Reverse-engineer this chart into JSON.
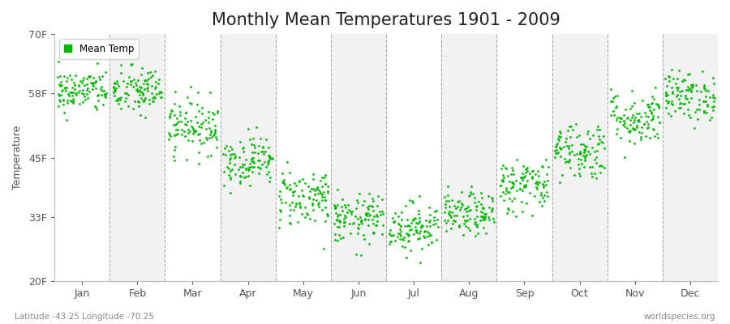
{
  "title": "Monthly Mean Temperatures 1901 - 2009",
  "ylabel": "Temperature",
  "xlabel_months": [
    "Jan",
    "Feb",
    "Mar",
    "Apr",
    "May",
    "Jun",
    "Jul",
    "Aug",
    "Sep",
    "Oct",
    "Nov",
    "Dec"
  ],
  "yticks": [
    20,
    33,
    45,
    58,
    70
  ],
  "ytick_labels": [
    "20F",
    "33F",
    "45F",
    "58F",
    "70F"
  ],
  "ylim": [
    20,
    70
  ],
  "dot_color": "#00bb00",
  "bg_color": "#ffffff",
  "band_color_light": "#f2f2f2",
  "band_color_dark": "#e8e8e8",
  "legend_label": "Mean Temp",
  "subtitle": "Latitude -43.25 Longitude -70.25",
  "watermark": "worldspecies.org",
  "title_fontsize": 15,
  "label_fontsize": 9,
  "mean_temps_by_month": [
    58.5,
    58.5,
    51.5,
    44.5,
    37.0,
    32.5,
    31.0,
    33.5,
    39.5,
    46.5,
    53.0,
    57.5
  ],
  "std_temps_by_month": [
    2.2,
    2.5,
    2.8,
    2.5,
    3.0,
    2.5,
    2.5,
    2.2,
    2.8,
    3.0,
    2.8,
    2.5
  ],
  "n_points": 109
}
